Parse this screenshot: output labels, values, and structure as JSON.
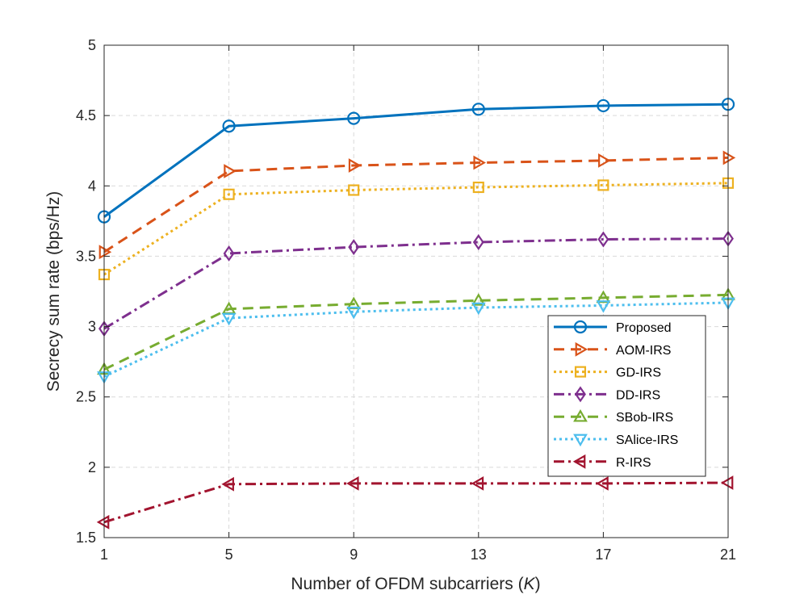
{
  "chart_data": {
    "type": "line",
    "title": "",
    "xlabel_prefix": "Number of OFDM subcarriers (",
    "xlabel_var": "K",
    "xlabel_suffix": ")",
    "ylabel": "Secrecy sum rate (bps/Hz)",
    "x": [
      1,
      5,
      9,
      13,
      17,
      21
    ],
    "x_ticks": [
      "1",
      "5",
      "9",
      "13",
      "17",
      "21"
    ],
    "xlim": [
      1,
      21
    ],
    "ylim": [
      1.5,
      5
    ],
    "y_ticks": [
      "1.5",
      "2",
      "2.5",
      "3",
      "3.5",
      "4",
      "4.5",
      "5"
    ],
    "y_tick_values": [
      1.5,
      2,
      2.5,
      3,
      3.5,
      4,
      4.5,
      5
    ],
    "grid": true,
    "legend_position": "lower-right inside",
    "series": [
      {
        "name": "Proposed",
        "color": "#0072BD",
        "line": "solid",
        "marker": "circle",
        "values": [
          3.78,
          4.425,
          4.48,
          4.545,
          4.57,
          4.58
        ]
      },
      {
        "name": "AOM-IRS",
        "color": "#D95319",
        "line": "dashed",
        "marker": "triangle-right",
        "values": [
          3.53,
          4.105,
          4.145,
          4.165,
          4.18,
          4.2
        ]
      },
      {
        "name": "GD-IRS",
        "color": "#EDB120",
        "line": "dotted",
        "marker": "square",
        "values": [
          3.37,
          3.94,
          3.97,
          3.99,
          4.005,
          4.02
        ]
      },
      {
        "name": "DD-IRS",
        "color": "#7E2F8E",
        "line": "dashdot",
        "marker": "diamond",
        "values": [
          2.985,
          3.52,
          3.565,
          3.6,
          3.62,
          3.625
        ]
      },
      {
        "name": "SBob-IRS",
        "color": "#77AC30",
        "line": "dashed",
        "marker": "triangle-up",
        "values": [
          2.695,
          3.125,
          3.16,
          3.185,
          3.205,
          3.225
        ]
      },
      {
        "name": "SAlice-IRS",
        "color": "#4DBEEE",
        "line": "dotted",
        "marker": "triangle-down",
        "values": [
          2.645,
          3.06,
          3.105,
          3.135,
          3.15,
          3.17
        ]
      },
      {
        "name": "R-IRS",
        "color": "#A2142F",
        "line": "dashdot",
        "marker": "triangle-left",
        "values": [
          1.61,
          1.88,
          1.885,
          1.885,
          1.885,
          1.89
        ]
      }
    ]
  }
}
